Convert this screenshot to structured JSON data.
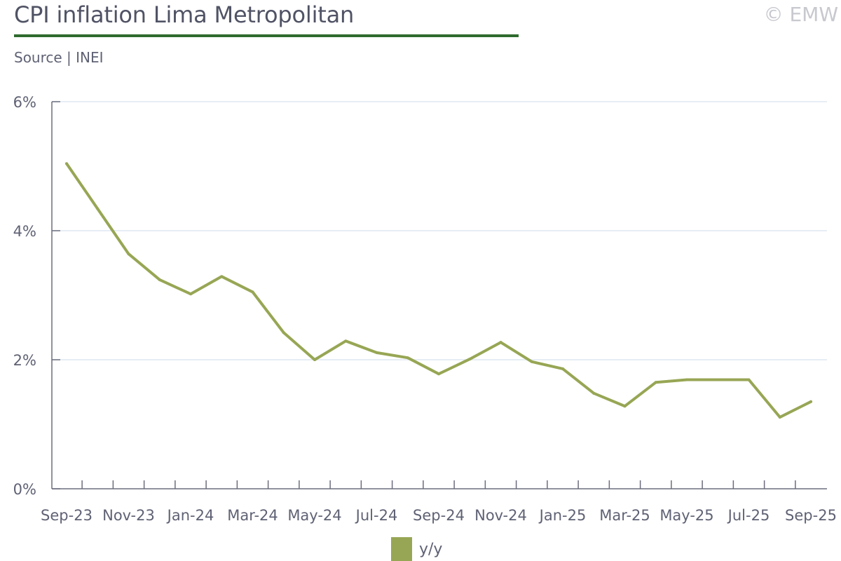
{
  "header": {
    "title": "CPI inflation Lima Metropolitan",
    "source": "Source | INEI",
    "copyright": "© EMW"
  },
  "colors": {
    "series": "#97a654",
    "title_rule": "#2e6b2e",
    "grid": "#dfe7f1",
    "axis": "#6b6e7d"
  },
  "chart_data": {
    "type": "line",
    "title": "CPI inflation Lima Metropolitan",
    "xlabel": "",
    "ylabel": "",
    "ylim": [
      0,
      6
    ],
    "yticks": [
      0,
      2,
      4,
      6
    ],
    "ytick_labels": [
      "0%",
      "2%",
      "4%",
      "6%"
    ],
    "grid": true,
    "legend_position": "bottom-center",
    "x": [
      "Sep-23",
      "Oct-23",
      "Nov-23",
      "Dec-23",
      "Jan-24",
      "Feb-24",
      "Mar-24",
      "Apr-24",
      "May-24",
      "Jun-24",
      "Jul-24",
      "Aug-24",
      "Sep-24",
      "Oct-24",
      "Nov-24",
      "Dec-24",
      "Jan-25",
      "Feb-25",
      "Mar-25",
      "Apr-25",
      "May-25",
      "Jun-25",
      "Jul-25",
      "Aug-25",
      "Sep-25"
    ],
    "x_tick_labels": [
      "Sep-23",
      "Nov-23",
      "Jan-24",
      "Mar-24",
      "May-24",
      "Jul-24",
      "Sep-24",
      "Nov-24",
      "Jan-25",
      "Mar-25",
      "May-25",
      "Jul-25",
      "Sep-25"
    ],
    "series": [
      {
        "name": "y/y",
        "values": [
          5.04,
          4.34,
          3.64,
          3.24,
          3.02,
          3.29,
          3.05,
          2.42,
          2.0,
          2.29,
          2.11,
          2.03,
          1.78,
          2.01,
          2.27,
          1.97,
          1.86,
          1.48,
          1.28,
          1.65,
          1.69,
          1.69,
          1.69,
          1.11,
          1.35
        ]
      }
    ]
  }
}
